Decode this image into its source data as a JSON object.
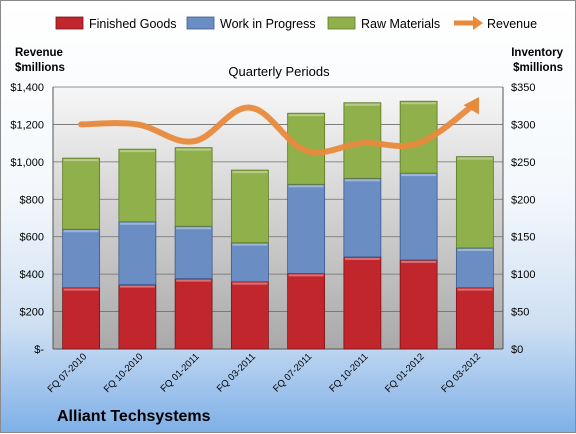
{
  "chart_data": {
    "type": "bar",
    "stacked": true,
    "title": "Quarterly Periods",
    "company": "Alliant Techsystems",
    "y_left_title": [
      "Revenue",
      "$millions"
    ],
    "y_right_title": [
      "Inventory",
      "$millions"
    ],
    "categories": [
      "FQ 07-2010",
      "FQ 10-2010",
      "FQ 01-2011",
      "FQ 03-2011",
      "FQ 07-2011",
      "FQ 10-2011",
      "FQ 01-2012",
      "FQ 03-2012"
    ],
    "series": [
      {
        "name": "Finished Goods",
        "axis": "right",
        "color": "#c0262b",
        "values": [
          82,
          86,
          94,
          90,
          101,
          123,
          119,
          82
        ]
      },
      {
        "name": "Work in Progress",
        "axis": "right",
        "color": "#6a8ec4",
        "values": [
          78,
          84,
          70,
          52,
          119,
          105,
          116,
          53
        ]
      },
      {
        "name": "Raw Materials",
        "axis": "right",
        "color": "#8fb04a",
        "values": [
          95,
          97,
          105,
          97,
          95,
          101,
          96,
          122
        ]
      },
      {
        "name": "Revenue",
        "axis": "left",
        "type": "line",
        "color": "#e88a3c",
        "values": [
          1200,
          1200,
          1110,
          1290,
          1060,
          1100,
          1100,
          1310
        ]
      }
    ],
    "y_left": {
      "ylim": [
        0,
        1400
      ],
      "ticks": [
        0,
        200,
        400,
        600,
        800,
        1000,
        1200,
        1400
      ],
      "tick_labels": [
        "$-",
        "$200",
        "$400",
        "$600",
        "$800",
        "$1,000",
        "$1,200",
        "$1,400"
      ]
    },
    "y_right": {
      "ylim": [
        0,
        350
      ],
      "ticks": [
        0,
        50,
        100,
        150,
        200,
        250,
        300,
        350
      ],
      "tick_labels": [
        "$0",
        "$50",
        "$100",
        "$150",
        "$200",
        "$250",
        "$300",
        "$350"
      ]
    },
    "grid": true,
    "legend_position": "top"
  }
}
